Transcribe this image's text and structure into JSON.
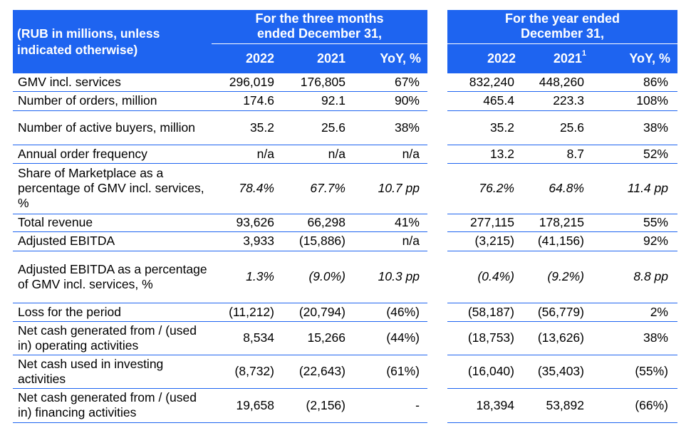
{
  "header": {
    "units_label": "(RUB in millions, unless indicated otherwise)",
    "group_quarter": "For the three months ended December 31,",
    "group_year": "For the year ended December 31,",
    "quarter_cols": [
      "2022",
      "2021",
      "YoY, %"
    ],
    "year_cols": [
      "2022",
      "2021",
      "YoY, %"
    ],
    "year_2021_footnote": "1"
  },
  "colors": {
    "header_bg": "#1e64f0",
    "header_text": "#ffffff",
    "rule": "#1e64f0"
  },
  "rows": [
    {
      "label": "GMV incl. services",
      "q": [
        "296,019",
        "176,805",
        "67%"
      ],
      "y": [
        "832,240",
        "448,260",
        "86%"
      ],
      "italic": false
    },
    {
      "label": "Number of orders, million",
      "q": [
        "174.6",
        "92.1",
        "90%"
      ],
      "y": [
        "465.4",
        "223.3",
        "108%"
      ],
      "italic": false
    },
    {
      "label": "Number of active buyers, million",
      "q": [
        "35.2",
        "25.6",
        "38%"
      ],
      "y": [
        "35.2",
        "25.6",
        "38%"
      ],
      "italic": false
    },
    {
      "label": "Annual order frequency",
      "q": [
        "n/a",
        "n/a",
        "n/a"
      ],
      "y": [
        "13.2",
        "8.7",
        "52%"
      ],
      "italic": false
    },
    {
      "label": "Share of Marketplace as a percentage of GMV incl. services, %",
      "q": [
        "78.4%",
        "67.7%",
        "10.7 pp"
      ],
      "y": [
        "76.2%",
        "64.8%",
        "11.4 pp"
      ],
      "italic": true
    },
    {
      "label": "Total revenue",
      "q": [
        "93,626",
        "66,298",
        "41%"
      ],
      "y": [
        "277,115",
        "178,215",
        "55%"
      ],
      "italic": false
    },
    {
      "label": "Adjusted EBITDA",
      "q": [
        "3,933",
        "(15,886)",
        "n/a"
      ],
      "y": [
        "(3,215)",
        "(41,156)",
        "92%"
      ],
      "italic": false
    },
    {
      "label": "Adjusted EBITDA as a percentage of GMV incl. services, %",
      "q": [
        "1.3%",
        "(9.0%)",
        "10.3 pp"
      ],
      "y": [
        "(0.4%)",
        "(9.2%)",
        "8.8 pp"
      ],
      "italic": true
    },
    {
      "label": "Loss for the period",
      "q": [
        "(11,212)",
        "(20,794)",
        "(46%)"
      ],
      "y": [
        "(58,187)",
        "(56,779)",
        "2%"
      ],
      "italic": false
    },
    {
      "label": "Net cash generated from / (used in) operating activities",
      "q": [
        "8,534",
        "15,266",
        "(44%)"
      ],
      "y": [
        "(18,753)",
        "(13,626)",
        "38%"
      ],
      "italic": false
    },
    {
      "label": "Net cash used in investing activities",
      "q": [
        "(8,732)",
        "(22,643)",
        "(61%)"
      ],
      "y": [
        "(16,040)",
        "(35,403)",
        "(55%)"
      ],
      "italic": false
    },
    {
      "label": "Net cash generated from / (used in) financing activities",
      "q": [
        "19,658",
        "(2,156)",
        "-"
      ],
      "y": [
        "18,394",
        "53,892",
        "(66%)"
      ],
      "italic": false
    }
  ]
}
